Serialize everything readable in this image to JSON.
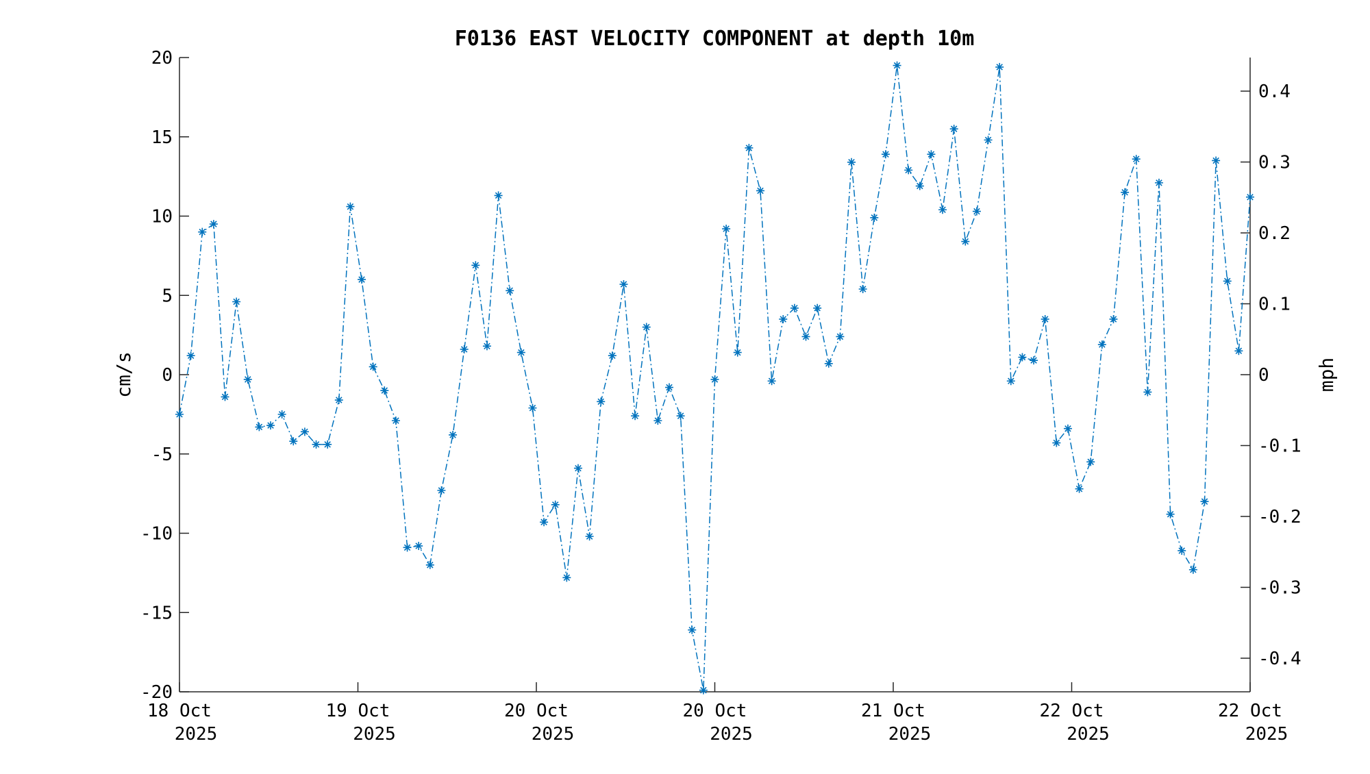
{
  "chart_data": {
    "type": "line",
    "title": "F0136 EAST VELOCITY COMPONENT at depth 10m",
    "ylabel": "cm/s",
    "ylabel_right": "mph",
    "ylim": [
      -20,
      20
    ],
    "ylim_right_mph": [
      -0.4474,
      0.4474
    ],
    "y_ticks": [
      "-20",
      "-15",
      "-10",
      "-5",
      "0",
      "5",
      "10",
      "15",
      "20"
    ],
    "y_right_ticks": [
      "-0.4",
      "-0.3",
      "-0.2",
      "-0.1",
      "0",
      "0.1",
      "0.2",
      "0.3",
      "0.4"
    ],
    "x_ticks": [
      {
        "line1": "18 Oct",
        "line2": "2025"
      },
      {
        "line1": "19 Oct",
        "line2": "2025"
      },
      {
        "line1": "20 Oct",
        "line2": "2025"
      },
      {
        "line1": "20 Oct",
        "line2": "2025"
      },
      {
        "line1": "21 Oct",
        "line2": "2025"
      },
      {
        "line1": "22 Oct",
        "line2": "2025"
      },
      {
        "line1": "22 Oct",
        "line2": "2025"
      }
    ],
    "color": "#0072BD",
    "marker": "asterisk",
    "line_style": "dash-dot",
    "grid": false,
    "values": [
      -2.5,
      1.2,
      9.0,
      9.5,
      -1.4,
      4.6,
      -0.3,
      -3.3,
      -3.2,
      -2.5,
      -4.2,
      -3.6,
      -4.4,
      -4.4,
      -1.6,
      10.6,
      6.0,
      0.5,
      -1.0,
      -2.9,
      -10.9,
      -10.8,
      -12.0,
      -7.3,
      -3.8,
      1.6,
      6.9,
      1.8,
      11.3,
      5.3,
      1.4,
      -2.1,
      -9.3,
      -8.2,
      -12.8,
      -5.9,
      -10.2,
      -1.7,
      1.2,
      5.7,
      -2.6,
      3.0,
      -2.9,
      -0.8,
      -2.6,
      -16.1,
      -19.9,
      -0.3,
      9.2,
      1.4,
      14.3,
      11.6,
      -0.4,
      3.5,
      4.2,
      2.4,
      4.2,
      0.7,
      2.4,
      13.4,
      5.4,
      9.9,
      13.9,
      19.5,
      12.9,
      11.9,
      13.9,
      10.4,
      15.5,
      8.4,
      10.3,
      14.8,
      19.4,
      -0.4,
      1.1,
      0.9,
      3.5,
      -4.3,
      -3.4,
      -7.2,
      -5.5,
      1.9,
      3.5,
      11.5,
      13.6,
      -1.1,
      12.1,
      -8.8,
      -11.1,
      -12.3,
      -8.0,
      13.5,
      5.9,
      1.5,
      11.2
    ]
  }
}
